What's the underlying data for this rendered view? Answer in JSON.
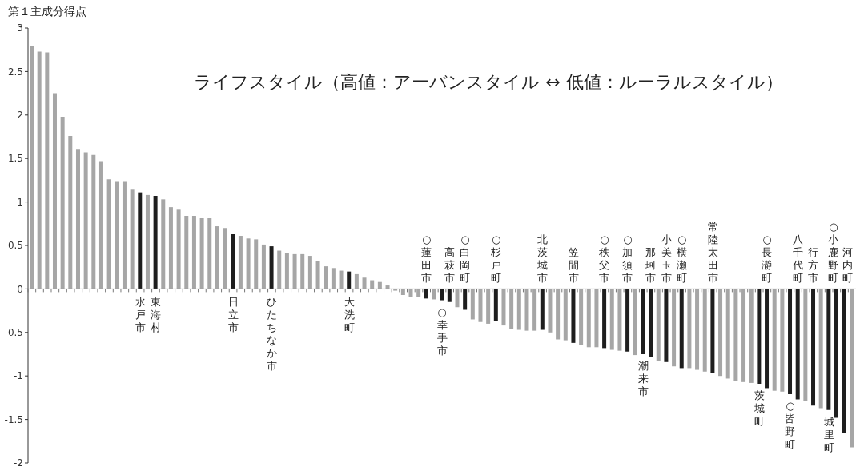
{
  "chart_data": {
    "type": "bar",
    "title": "ライフスタイル（高値：アーバンスタイル ↔ 低値：ルーラルスタイル）",
    "ylabel": "第１主成分得点",
    "categories": [
      null,
      null,
      null,
      null,
      null,
      null,
      null,
      null,
      null,
      null,
      null,
      null,
      null,
      null,
      "水戸市",
      null,
      "東海村",
      null,
      null,
      null,
      null,
      null,
      null,
      null,
      null,
      null,
      "日立市",
      null,
      null,
      null,
      null,
      "ひたちなか市",
      null,
      null,
      null,
      null,
      null,
      null,
      null,
      null,
      null,
      "大洗町",
      null,
      null,
      null,
      null,
      null,
      null,
      null,
      null,
      null,
      "○蓮田市",
      null,
      "○幸手市",
      "高萩市",
      null,
      "○白岡町",
      null,
      null,
      null,
      "○杉戸町",
      null,
      null,
      null,
      null,
      null,
      "北茨城市",
      null,
      null,
      null,
      "笠間市",
      null,
      null,
      null,
      "○秩父市",
      null,
      null,
      "○加須市",
      null,
      "潮来市",
      "那珂市",
      null,
      "小美玉市",
      null,
      "○横瀬町",
      null,
      null,
      null,
      "常陸太田市",
      null,
      null,
      null,
      null,
      null,
      "茨城町",
      "○長瀞町",
      null,
      null,
      "○皆野町",
      "八千代町",
      null,
      "行方市",
      null,
      "城里町",
      "○小鹿野町",
      "河内町",
      null
    ],
    "values": [
      2.79,
      2.73,
      2.72,
      2.25,
      1.98,
      1.76,
      1.61,
      1.57,
      1.54,
      1.47,
      1.26,
      1.24,
      1.24,
      1.15,
      1.11,
      1.08,
      1.07,
      1.03,
      0.94,
      0.92,
      0.84,
      0.84,
      0.82,
      0.82,
      0.72,
      0.7,
      0.63,
      0.61,
      0.58,
      0.57,
      0.51,
      0.49,
      0.44,
      0.41,
      0.4,
      0.4,
      0.38,
      0.32,
      0.26,
      0.24,
      0.21,
      0.2,
      0.17,
      0.13,
      0.1,
      0.08,
      0.04,
      -0.02,
      -0.07,
      -0.09,
      -0.09,
      -0.11,
      -0.12,
      -0.13,
      -0.15,
      -0.21,
      -0.24,
      -0.35,
      -0.38,
      -0.4,
      -0.37,
      -0.42,
      -0.46,
      -0.47,
      -0.48,
      -0.48,
      -0.47,
      -0.5,
      -0.58,
      -0.59,
      -0.62,
      -0.64,
      -0.67,
      -0.67,
      -0.68,
      -0.7,
      -0.71,
      -0.72,
      -0.76,
      -0.75,
      -0.78,
      -0.83,
      -0.84,
      -0.89,
      -0.91,
      -0.91,
      -0.93,
      -0.95,
      -0.97,
      -1.0,
      -1.03,
      -1.06,
      -1.07,
      -1.08,
      -1.09,
      -1.14,
      -1.17,
      -1.18,
      -1.21,
      -1.27,
      -1.29,
      -1.34,
      -1.37,
      -1.39,
      -1.48,
      -1.66,
      -1.82
    ],
    "colors": [
      "#a6a6a6",
      "#a6a6a6",
      "#a6a6a6",
      "#a6a6a6",
      "#a6a6a6",
      "#a6a6a6",
      "#a6a6a6",
      "#a6a6a6",
      "#a6a6a6",
      "#a6a6a6",
      "#a6a6a6",
      "#a6a6a6",
      "#a6a6a6",
      "#a6a6a6",
      "#1e1e1e",
      "#a6a6a6",
      "#1e1e1e",
      "#a6a6a6",
      "#a6a6a6",
      "#a6a6a6",
      "#a6a6a6",
      "#a6a6a6",
      "#a6a6a6",
      "#a6a6a6",
      "#a6a6a6",
      "#a6a6a6",
      "#1e1e1e",
      "#a6a6a6",
      "#a6a6a6",
      "#a6a6a6",
      "#a6a6a6",
      "#1e1e1e",
      "#a6a6a6",
      "#a6a6a6",
      "#a6a6a6",
      "#a6a6a6",
      "#a6a6a6",
      "#a6a6a6",
      "#a6a6a6",
      "#a6a6a6",
      "#a6a6a6",
      "#1e1e1e",
      "#a6a6a6",
      "#a6a6a6",
      "#a6a6a6",
      "#a6a6a6",
      "#a6a6a6",
      "#a6a6a6",
      "#a6a6a6",
      "#a6a6a6",
      "#a6a6a6",
      "#1e1e1e",
      "#a6a6a6",
      "#1e1e1e",
      "#1e1e1e",
      "#a6a6a6",
      "#1e1e1e",
      "#a6a6a6",
      "#a6a6a6",
      "#a6a6a6",
      "#1e1e1e",
      "#a6a6a6",
      "#a6a6a6",
      "#a6a6a6",
      "#a6a6a6",
      "#a6a6a6",
      "#1e1e1e",
      "#a6a6a6",
      "#a6a6a6",
      "#a6a6a6",
      "#1e1e1e",
      "#a6a6a6",
      "#a6a6a6",
      "#a6a6a6",
      "#1e1e1e",
      "#a6a6a6",
      "#a6a6a6",
      "#1e1e1e",
      "#a6a6a6",
      "#1e1e1e",
      "#1e1e1e",
      "#a6a6a6",
      "#1e1e1e",
      "#a6a6a6",
      "#1e1e1e",
      "#a6a6a6",
      "#a6a6a6",
      "#a6a6a6",
      "#1e1e1e",
      "#a6a6a6",
      "#a6a6a6",
      "#a6a6a6",
      "#a6a6a6",
      "#a6a6a6",
      "#1e1e1e",
      "#1e1e1e",
      "#a6a6a6",
      "#a6a6a6",
      "#1e1e1e",
      "#1e1e1e",
      "#a6a6a6",
      "#1e1e1e",
      "#a6a6a6",
      "#1e1e1e",
      "#1e1e1e",
      "#1e1e1e",
      "#a6a6a6"
    ],
    "ylim": [
      -2,
      3
    ],
    "yticks": [
      3,
      2.5,
      2,
      1.5,
      1,
      0.5,
      0,
      -0.5,
      -1,
      -1.5,
      -2
    ]
  }
}
